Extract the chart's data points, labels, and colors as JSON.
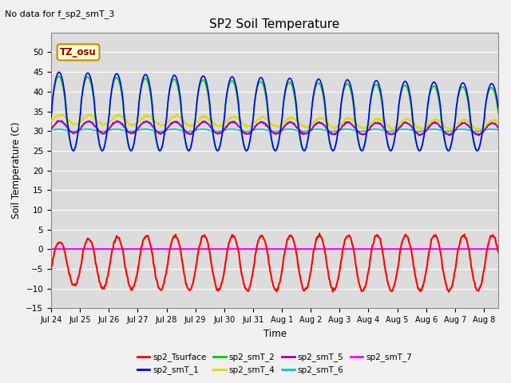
{
  "title": "SP2 Soil Temperature",
  "subtitle": "No data for f_sp2_smT_3",
  "ylabel": "Soil Temperature (C)",
  "xlabel": "Time",
  "tz_label": "TZ_osu",
  "ylim": [
    -15,
    55
  ],
  "yticks": [
    -15,
    -10,
    -5,
    0,
    5,
    10,
    15,
    20,
    25,
    30,
    35,
    40,
    45,
    50
  ],
  "x_tick_labels": [
    "Jul 24",
    "Jul 25",
    "Jul 26",
    "Jul 27",
    "Jul 28",
    "Jul 29",
    "Jul 30",
    "Jul 31",
    "Aug 1",
    "Aug 2",
    "Aug 3",
    "Aug 4",
    "Aug 5",
    "Aug 6",
    "Aug 7",
    "Aug 8"
  ],
  "fig_bg_color": "#f0f0f0",
  "plot_bg_color": "#dcdcdc",
  "grid_color": "#ffffff",
  "series_colors": {
    "sp2_Tsurface": "#ff0000",
    "sp2_smT_1": "#0000ff",
    "sp2_smT_2": "#00cc00",
    "sp2_smT_4": "#dddd00",
    "sp2_smT_5": "#aa00aa",
    "sp2_smT_6": "#00cccc",
    "sp2_smT_7": "#ff00ff"
  },
  "lw": 1.2
}
